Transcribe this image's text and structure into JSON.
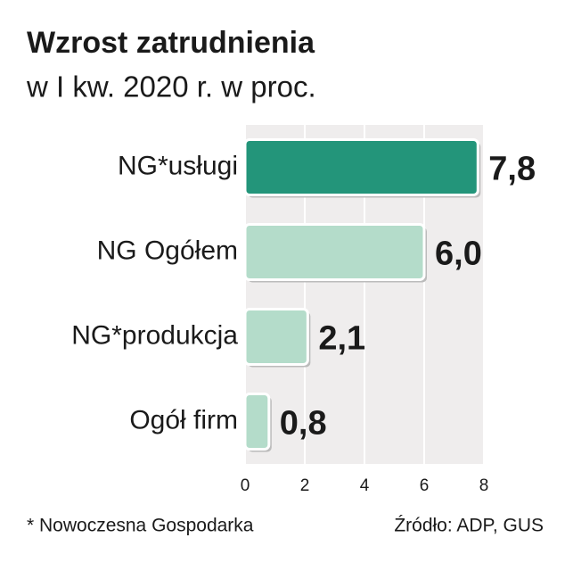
{
  "chart_data": {
    "type": "barh",
    "title": "Wzrost zatrudnienia",
    "subtitle": "w I kw. 2020 r. w proc.",
    "categories": [
      "NG*usługi",
      "NG Ogółem",
      "NG*produkcja",
      "Ogół firm"
    ],
    "values": [
      7.8,
      6.0,
      2.1,
      0.8
    ],
    "value_labels": [
      "7,8",
      "6,0",
      "2,1",
      "0,8"
    ],
    "colors": [
      "#23957a",
      "#b4dcca",
      "#b4dcca",
      "#b4dcca"
    ],
    "xlim": [
      0,
      8
    ],
    "xticks": [
      0,
      2,
      4,
      6,
      8
    ],
    "grid": true,
    "footnote": "* Nowoczesna Gospodarka",
    "source": "Źródło: ADP, GUS"
  }
}
